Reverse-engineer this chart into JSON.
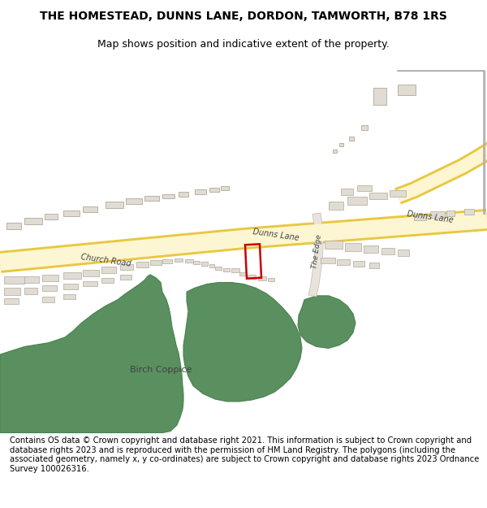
{
  "title": "THE HOMESTEAD, DUNNS LANE, DORDON, TAMWORTH, B78 1RS",
  "subtitle": "Map shows position and indicative extent of the property.",
  "footer": "Contains OS data © Crown copyright and database right 2021. This information is subject to Crown copyright and database rights 2023 and is reproduced with the permission of HM Land Registry. The polygons (including the associated geometry, namely x, y co-ordinates) are subject to Crown copyright and database rights 2023 Ordnance Survey 100026316.",
  "bg_color": "#ffffff",
  "road_color": "#fdf6d3",
  "road_edge_color": "#e8c840",
  "building_color": "#e0dcd4",
  "building_edge_color": "#b0a898",
  "green_color": "#5a9060",
  "green_edge_color": "#4a8050",
  "highlight_color": "#cc0000",
  "road_label_color": "#444444",
  "title_fontsize": 10,
  "subtitle_fontsize": 9,
  "footer_fontsize": 7.2
}
